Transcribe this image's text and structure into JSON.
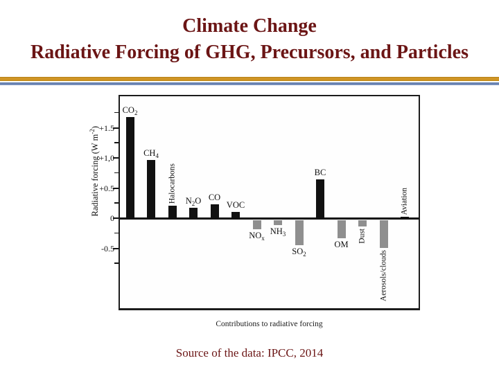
{
  "slide": {
    "title_line1": "Climate Change",
    "title_line2": "Radiative Forcing of GHG, Precursors, and Particles",
    "title_color": "#6b1515",
    "separator_gold_color": "#d79a28",
    "separator_blue_color": "#7e96c2",
    "source": "Source of the data: IPCC, 2014"
  },
  "chart_data": {
    "type": "bar",
    "title": "",
    "xlabel": "Contributions to radiative forcing",
    "ylabel": "Radiative forcing (W m-2)",
    "ylabel_parts": [
      {
        "t": "Radiative forcing (W m"
      },
      {
        "sup": "-2"
      },
      {
        "t": ")"
      }
    ],
    "ylim": [
      -1.5,
      1.95
    ],
    "grid": false,
    "legend": "none",
    "positive_color": "#111111",
    "negative_color": "#8f8f8f",
    "yticks": [
      {
        "value": 1.5,
        "label": "+1.5"
      },
      {
        "value": 1.0,
        "label": "+1,0"
      },
      {
        "value": 0.5,
        "label": "+0.5"
      },
      {
        "value": 0.0,
        "label": "0"
      },
      {
        "value": -0.5,
        "label": "-0.5"
      }
    ],
    "yticks_minor": [
      1.75,
      1.25,
      0.75,
      0.25,
      -0.25,
      -0.75
    ],
    "categories": [
      "CO2",
      "CH4",
      "Halocarbons",
      "N2O",
      "CO",
      "VOC",
      "NOx",
      "NH3",
      "SO2",
      "BC",
      "OM",
      "Dust",
      "Aerosols/clouds",
      "Aviation"
    ],
    "values": [
      1.68,
      0.97,
      0.21,
      0.17,
      0.23,
      0.1,
      -0.15,
      -0.08,
      -0.41,
      0.64,
      -0.3,
      -0.1,
      -0.46,
      0.02
    ],
    "bars": [
      {
        "name": "CO2",
        "value": 1.68,
        "label_parts": [
          {
            "t": "CO"
          },
          {
            "sub": "2"
          }
        ],
        "label_side": "above",
        "rotated": false
      },
      {
        "name": "CH4",
        "value": 0.97,
        "label_parts": [
          {
            "t": "CH"
          },
          {
            "sub": "4"
          }
        ],
        "label_side": "above",
        "rotated": false
      },
      {
        "name": "Halocarbons",
        "value": 0.21,
        "label_parts": [
          {
            "t": "Halocarbons"
          }
        ],
        "label_side": "above",
        "rotated": true
      },
      {
        "name": "N2O",
        "value": 0.17,
        "label_parts": [
          {
            "t": "N"
          },
          {
            "sub": "2"
          },
          {
            "t": "O"
          }
        ],
        "label_side": "above",
        "rotated": false
      },
      {
        "name": "CO",
        "value": 0.23,
        "label_parts": [
          {
            "t": "CO"
          }
        ],
        "label_side": "above",
        "rotated": false
      },
      {
        "name": "VOC",
        "value": 0.1,
        "label_parts": [
          {
            "t": "VOC"
          }
        ],
        "label_side": "above",
        "rotated": false
      },
      {
        "name": "NOx",
        "value": -0.15,
        "label_parts": [
          {
            "t": "NO"
          },
          {
            "sub": "x"
          }
        ],
        "label_side": "below",
        "rotated": false
      },
      {
        "name": "NH3",
        "value": -0.08,
        "label_parts": [
          {
            "t": "NH"
          },
          {
            "sub": "3"
          }
        ],
        "label_side": "below",
        "rotated": false
      },
      {
        "name": "SO2",
        "value": -0.41,
        "label_parts": [
          {
            "t": "SO"
          },
          {
            "sub": "2"
          }
        ],
        "label_side": "below",
        "rotated": false
      },
      {
        "name": "BC",
        "value": 0.64,
        "label_parts": [
          {
            "t": "BC"
          }
        ],
        "label_side": "above",
        "rotated": false
      },
      {
        "name": "OM",
        "value": -0.3,
        "label_parts": [
          {
            "t": "OM"
          }
        ],
        "label_side": "below",
        "rotated": false
      },
      {
        "name": "Dust",
        "value": -0.1,
        "label_parts": [
          {
            "t": "Dust"
          }
        ],
        "label_side": "below",
        "rotated": true
      },
      {
        "name": "Aerosols/clouds",
        "value": -0.46,
        "label_parts": [
          {
            "t": "Aerosols/clouds"
          }
        ],
        "label_side": "below",
        "rotated": true
      },
      {
        "name": "Aviation",
        "value": 0.02,
        "label_parts": [
          {
            "t": "Aviation"
          }
        ],
        "label_side": "above",
        "rotated": true
      }
    ]
  }
}
